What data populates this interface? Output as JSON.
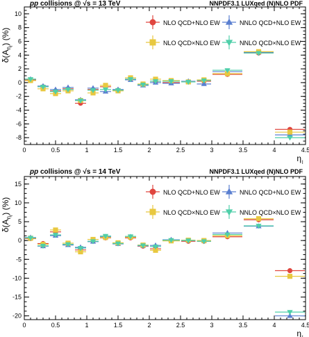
{
  "styles": {
    "NLO QCD+NLO EW": {
      "color": "#e0463f",
      "marker": "circle"
    },
    "NNLO QCD+NLO EW": {
      "color": "#5a7fd0",
      "marker": "triangle-up"
    },
    "NLO QCD×NLO EW": {
      "color": "#e8c840",
      "marker": "square"
    },
    "NNLO QCD×NLO EW": {
      "color": "#4fcfa9",
      "marker": "triangle-down"
    }
  },
  "chart_data": [
    {
      "type": "scatter",
      "title_left_pre": "pp",
      "title_left_post": " collisions @ √s = 13 TeV",
      "title_right": "NNPDF3.1 LUXqed (N)NLO PDF",
      "xlabel": "η",
      "xlabel_sub": "l",
      "ylabel": "δ(A",
      "ylabel_sub": "η",
      "ylabel_sub2": "l",
      "ylabel_tail": ") (%)",
      "xlim": [
        0,
        4.5
      ],
      "ylim": [
        -9,
        11
      ],
      "xticks": [
        "0",
        "0.5",
        "1",
        "1.5",
        "2",
        "2.5",
        "3",
        "3.5",
        "4",
        "4.5"
      ],
      "yticks": [
        "-8",
        "-6",
        "-4",
        "-2",
        "0",
        "2",
        "4",
        "6",
        "8",
        "10"
      ],
      "bins": [
        [
          0,
          0.2
        ],
        [
          0.2,
          0.4
        ],
        [
          0.4,
          0.6
        ],
        [
          0.6,
          0.8
        ],
        [
          0.8,
          1.0
        ],
        [
          1.0,
          1.2
        ],
        [
          1.2,
          1.4
        ],
        [
          1.4,
          1.6
        ],
        [
          1.6,
          1.8
        ],
        [
          1.8,
          2.0
        ],
        [
          2.0,
          2.2
        ],
        [
          2.2,
          2.5
        ],
        [
          2.5,
          2.75
        ],
        [
          2.75,
          3.0
        ],
        [
          3.0,
          3.5
        ],
        [
          3.5,
          4.0
        ],
        [
          4.0,
          4.5
        ]
      ],
      "series": [
        {
          "name": "NLO QCD+NLO EW",
          "values": [
            0.4,
            -0.6,
            -1.2,
            -0.9,
            -3.0,
            -1.0,
            -0.6,
            -1.1,
            0.5,
            -0.3,
            0.2,
            0.0,
            0.1,
            0.2,
            1.2,
            4.3,
            -6.8
          ]
        },
        {
          "name": "NNLO QCD+NLO EW",
          "values": [
            0.5,
            -0.5,
            -1.0,
            -0.7,
            -2.5,
            -0.8,
            -1.3,
            -1.0,
            0.4,
            -0.4,
            0.0,
            -0.1,
            0.2,
            -0.2,
            1.6,
            4.4,
            -7.6
          ]
        },
        {
          "name": "NLO QCD×NLO EW",
          "values": [
            0.3,
            -0.9,
            -1.6,
            -1.2,
            -2.6,
            -1.5,
            -0.4,
            -1.2,
            0.7,
            -0.2,
            0.5,
            0.3,
            0.1,
            0.4,
            1.3,
            4.5,
            -7.2
          ]
        },
        {
          "name": "NNLO QCD×NLO EW",
          "values": [
            0.5,
            -0.6,
            -1.3,
            -1.0,
            -2.6,
            -1.1,
            -1.0,
            -1.1,
            0.5,
            -0.3,
            0.2,
            0.2,
            0.1,
            0.3,
            1.8,
            4.3,
            -8.0
          ]
        }
      ]
    },
    {
      "type": "scatter",
      "title_left_pre": "pp",
      "title_left_post": " collisions @ √s = 14 TeV",
      "title_right": "NNPDF3.1 LUXqed (N)NLO PDF",
      "xlabel": "η",
      "xlabel_sub": "l",
      "ylabel": "δ(A",
      "ylabel_sub": "η",
      "ylabel_sub2": "l",
      "ylabel_tail": ") (%)",
      "xlim": [
        0,
        4.5
      ],
      "ylim": [
        -21,
        17
      ],
      "xticks": [
        "0",
        "0.5",
        "1",
        "1.5",
        "2",
        "2.5",
        "3",
        "3.5",
        "4",
        "4.5"
      ],
      "yticks": [
        "-20",
        "-15",
        "-10",
        "-5",
        "0",
        "5",
        "10",
        "15"
      ],
      "bins": [
        [
          0,
          0.2
        ],
        [
          0.2,
          0.4
        ],
        [
          0.4,
          0.6
        ],
        [
          0.6,
          0.8
        ],
        [
          0.8,
          1.0
        ],
        [
          1.0,
          1.2
        ],
        [
          1.2,
          1.4
        ],
        [
          1.4,
          1.6
        ],
        [
          1.6,
          1.8
        ],
        [
          1.8,
          2.0
        ],
        [
          2.0,
          2.2
        ],
        [
          2.2,
          2.5
        ],
        [
          2.5,
          2.75
        ],
        [
          2.75,
          3.0
        ],
        [
          3.0,
          3.5
        ],
        [
          3.5,
          4.0
        ],
        [
          4.0,
          4.5
        ]
      ],
      "series": [
        {
          "name": "NLO QCD+NLO EW",
          "values": [
            0.5,
            -0.8,
            2.3,
            -1.0,
            -2.5,
            -0.2,
            0.7,
            -0.7,
            0.7,
            -1.5,
            -2.2,
            0.0,
            -0.2,
            -0.2,
            1.0,
            5.5,
            -8.0
          ]
        },
        {
          "name": "NNLO QCD+NLO EW",
          "values": [
            0.8,
            -1.5,
            1.3,
            -1.2,
            -1.8,
            -0.3,
            1.0,
            -0.9,
            1.0,
            -1.4,
            -1.3,
            0.2,
            0.0,
            -0.1,
            2.0,
            3.8,
            -20.0
          ]
        },
        {
          "name": "NLO QCD×NLO EW",
          "values": [
            0.6,
            -1.0,
            2.8,
            -0.7,
            -3.0,
            0.3,
            0.8,
            -0.6,
            0.9,
            -1.2,
            -2.6,
            -0.1,
            0.1,
            0.0,
            1.3,
            5.8,
            -9.5
          ]
        },
        {
          "name": "NNLO QCD×NLO EW",
          "values": [
            0.7,
            -1.4,
            1.5,
            -1.0,
            -2.0,
            -0.2,
            1.2,
            -0.8,
            1.1,
            -1.3,
            -1.6,
            0.1,
            0.0,
            -0.2,
            1.6,
            3.9,
            -19.0
          ]
        }
      ]
    }
  ]
}
